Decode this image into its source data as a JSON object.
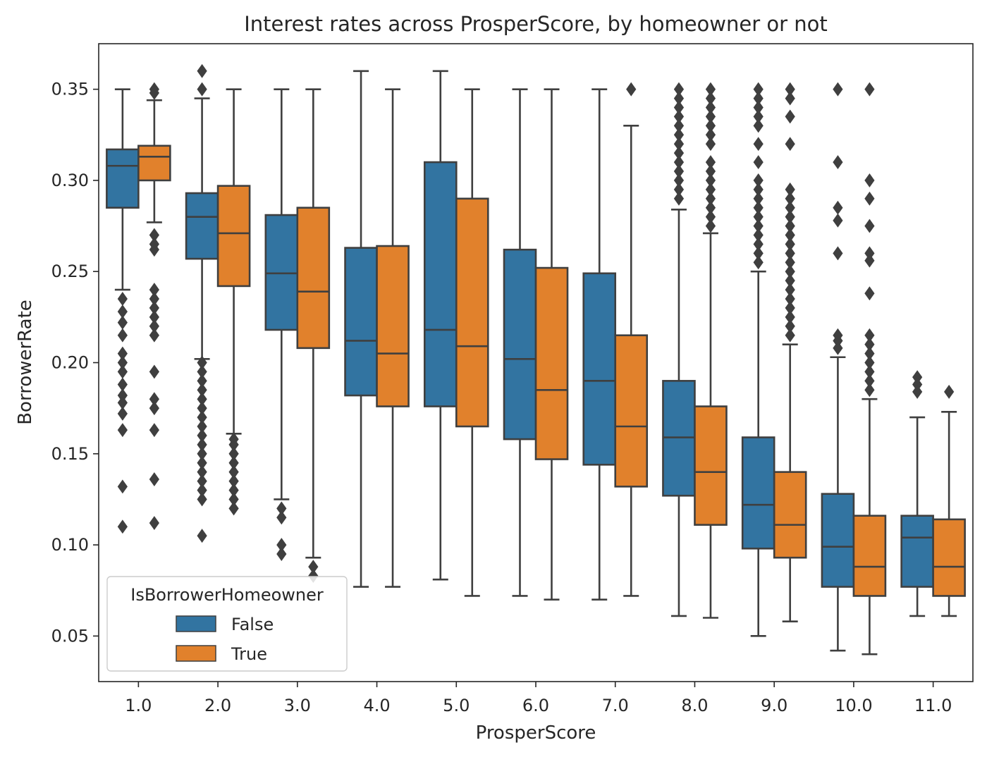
{
  "chart_data": {
    "type": "box",
    "title": "Interest rates across ProsperScore, by homeowner or not",
    "xlabel": "ProsperScore",
    "ylabel": "BorrowerRate",
    "categories": [
      "1.0",
      "2.0",
      "3.0",
      "4.0",
      "5.0",
      "6.0",
      "7.0",
      "8.0",
      "9.0",
      "10.0",
      "11.0"
    ],
    "y_ticks": [
      "0.05",
      "0.10",
      "0.15",
      "0.20",
      "0.25",
      "0.30",
      "0.35"
    ],
    "ylim": [
      0.025,
      0.375
    ],
    "grid": false,
    "legend": {
      "title": "IsBorrowerHomeowner",
      "position": "lower-left"
    },
    "series": [
      {
        "name": "False",
        "color": "#3274a1",
        "boxes": [
          {
            "whislo": 0.24,
            "q1": 0.285,
            "med": 0.308,
            "q3": 0.317,
            "whishi": 0.35,
            "fliers": [
              0.235,
              0.228,
              0.222,
              0.215,
              0.205,
              0.2,
              0.195,
              0.188,
              0.182,
              0.178,
              0.172,
              0.163,
              0.132,
              0.11
            ]
          },
          {
            "whislo": 0.202,
            "q1": 0.257,
            "med": 0.28,
            "q3": 0.293,
            "whishi": 0.345,
            "fliers": [
              0.36,
              0.35,
              0.2,
              0.195,
              0.19,
              0.185,
              0.18,
              0.175,
              0.17,
              0.165,
              0.16,
              0.155,
              0.15,
              0.145,
              0.14,
              0.135,
              0.13,
              0.125,
              0.105
            ]
          },
          {
            "whislo": 0.125,
            "q1": 0.218,
            "med": 0.249,
            "q3": 0.281,
            "whishi": 0.35,
            "fliers": [
              0.12,
              0.115,
              0.1,
              0.095
            ]
          },
          {
            "whislo": 0.077,
            "q1": 0.182,
            "med": 0.212,
            "q3": 0.263,
            "whishi": 0.36,
            "fliers": []
          },
          {
            "whislo": 0.081,
            "q1": 0.176,
            "med": 0.218,
            "q3": 0.31,
            "whishi": 0.36,
            "fliers": []
          },
          {
            "whislo": 0.072,
            "q1": 0.158,
            "med": 0.202,
            "q3": 0.262,
            "whishi": 0.35,
            "fliers": []
          },
          {
            "whislo": 0.07,
            "q1": 0.144,
            "med": 0.19,
            "q3": 0.249,
            "whishi": 0.35,
            "fliers": []
          },
          {
            "whislo": 0.061,
            "q1": 0.127,
            "med": 0.159,
            "q3": 0.19,
            "whishi": 0.284,
            "fliers": [
              0.35,
              0.345,
              0.34,
              0.335,
              0.33,
              0.325,
              0.32,
              0.315,
              0.31,
              0.305,
              0.3,
              0.295,
              0.29
            ]
          },
          {
            "whislo": 0.05,
            "q1": 0.098,
            "med": 0.122,
            "q3": 0.159,
            "whishi": 0.25,
            "fliers": [
              0.35,
              0.345,
              0.34,
              0.335,
              0.33,
              0.32,
              0.31,
              0.3,
              0.295,
              0.29,
              0.285,
              0.28,
              0.275,
              0.27,
              0.265,
              0.26,
              0.255
            ]
          },
          {
            "whislo": 0.042,
            "q1": 0.077,
            "med": 0.099,
            "q3": 0.128,
            "whishi": 0.203,
            "fliers": [
              0.35,
              0.31,
              0.285,
              0.278,
              0.26,
              0.215,
              0.212,
              0.208
            ]
          },
          {
            "whislo": 0.061,
            "q1": 0.077,
            "med": 0.104,
            "q3": 0.116,
            "whishi": 0.17,
            "fliers": [
              0.192,
              0.188,
              0.184
            ]
          }
        ]
      },
      {
        "name": "True",
        "color": "#e1812c",
        "boxes": [
          {
            "whislo": 0.277,
            "q1": 0.3,
            "med": 0.313,
            "q3": 0.319,
            "whishi": 0.344,
            "fliers": [
              0.35,
              0.348,
              0.27,
              0.265,
              0.262,
              0.24,
              0.235,
              0.23,
              0.225,
              0.22,
              0.215,
              0.195,
              0.18,
              0.175,
              0.163,
              0.136,
              0.112
            ]
          },
          {
            "whislo": 0.161,
            "q1": 0.242,
            "med": 0.271,
            "q3": 0.297,
            "whishi": 0.35,
            "fliers": [
              0.158,
              0.155,
              0.15,
              0.145,
              0.14,
              0.135,
              0.13,
              0.125,
              0.12
            ]
          },
          {
            "whislo": 0.093,
            "q1": 0.208,
            "med": 0.239,
            "q3": 0.285,
            "whishi": 0.35,
            "fliers": [
              0.088,
              0.083
            ]
          },
          {
            "whislo": 0.077,
            "q1": 0.176,
            "med": 0.205,
            "q3": 0.264,
            "whishi": 0.35,
            "fliers": []
          },
          {
            "whislo": 0.072,
            "q1": 0.165,
            "med": 0.209,
            "q3": 0.29,
            "whishi": 0.35,
            "fliers": []
          },
          {
            "whislo": 0.07,
            "q1": 0.147,
            "med": 0.185,
            "q3": 0.252,
            "whishi": 0.35,
            "fliers": []
          },
          {
            "whislo": 0.072,
            "q1": 0.132,
            "med": 0.165,
            "q3": 0.215,
            "whishi": 0.33,
            "fliers": [
              0.35
            ]
          },
          {
            "whislo": 0.06,
            "q1": 0.111,
            "med": 0.14,
            "q3": 0.176,
            "whishi": 0.271,
            "fliers": [
              0.35,
              0.345,
              0.34,
              0.335,
              0.33,
              0.325,
              0.32,
              0.31,
              0.305,
              0.3,
              0.295,
              0.29,
              0.285,
              0.28,
              0.275
            ]
          },
          {
            "whislo": 0.058,
            "q1": 0.093,
            "med": 0.111,
            "q3": 0.14,
            "whishi": 0.21,
            "fliers": [
              0.35,
              0.345,
              0.335,
              0.32,
              0.295,
              0.29,
              0.285,
              0.28,
              0.275,
              0.27,
              0.265,
              0.26,
              0.255,
              0.25,
              0.245,
              0.24,
              0.235,
              0.23,
              0.225,
              0.22,
              0.215
            ]
          },
          {
            "whislo": 0.04,
            "q1": 0.072,
            "med": 0.088,
            "q3": 0.116,
            "whishi": 0.18,
            "fliers": [
              0.35,
              0.3,
              0.29,
              0.275,
              0.26,
              0.256,
              0.238,
              0.215,
              0.21,
              0.205,
              0.2,
              0.195,
              0.19,
              0.185
            ]
          },
          {
            "whislo": 0.061,
            "q1": 0.072,
            "med": 0.088,
            "q3": 0.114,
            "whishi": 0.173,
            "fliers": [
              0.184
            ]
          }
        ]
      }
    ]
  }
}
